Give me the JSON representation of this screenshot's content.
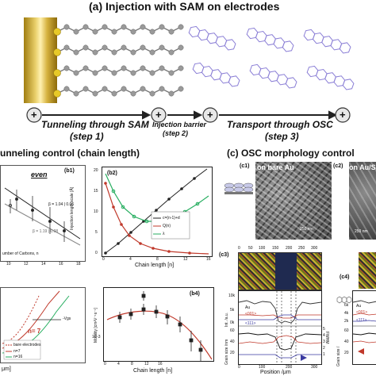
{
  "figure": {
    "title": "(a) Injection with SAM on electrodes",
    "steps": [
      {
        "label": "Tunneling through SAM",
        "sub": "(step 1)"
      },
      {
        "label": "Injection barrier",
        "sub": "(step 2)"
      },
      {
        "label": "Transport through OSC",
        "sub": "(step 3)"
      }
    ],
    "plus_symbol": "+",
    "section_b": "unneling control (chain length)",
    "section_c": "(c) OSC morphology control"
  },
  "b1": {
    "label": "(b1)",
    "tag": "even",
    "beta1": "β = 1.04 | 0.06",
    "beta2": "β = 1.19 | 0.08",
    "xlabel": "umber of Carbons, n",
    "xticks": [
      "10",
      "12",
      "14",
      "16",
      "18"
    ]
  },
  "b2": {
    "label": "(b2)",
    "ylabel": "Injection length scale [Å]",
    "xlabel": "Chain length [n]",
    "xticks": [
      "0",
      "2",
      "4",
      "6",
      "8",
      "10",
      "12",
      "14",
      "16"
    ],
    "yticks": [
      "0",
      "5",
      "10",
      "15",
      "20"
    ],
    "legend": [
      "c=(n-1)+d",
      "Q(n)",
      "λ"
    ]
  },
  "b3": {
    "label": "n= 7",
    "vgs": "-Vgs",
    "legend": [
      "bare electrodes",
      "n=7",
      "n=16"
    ],
    "xlabel": "μm]"
  },
  "b4": {
    "label": "(b4)",
    "ylabel": "Mobility [cm²V⁻¹s⁻¹]",
    "xlabel": "Chain length [n]",
    "ytick_low": "1E-3",
    "xticks": [
      "0",
      "2",
      "4",
      "6",
      "8",
      "10",
      "12",
      "14",
      "16"
    ]
  },
  "c1": {
    "label": "(c1)",
    "caption": "on bare Au",
    "scale": "250 nm"
  },
  "c2": {
    "label": "(c2)",
    "caption": "on Au/SAM",
    "scale": "250 nm"
  },
  "c3": {
    "label": "(c3)",
    "top_ticks": [
      "0",
      "50",
      "100",
      "150",
      "200",
      "250",
      "300"
    ],
    "ylabel_int": "Int. /a.u.",
    "ylabel_grain": "Grain size /nm",
    "ylabel_fwhm": "FWHM",
    "au": "Au",
    "p001": "<001>",
    "p111": "<111>",
    "yticks_int": [
      "10k",
      "5k",
      "0k"
    ],
    "yticks_grain": [
      "60",
      "40",
      "20"
    ],
    "yticks_right": [
      "5",
      "4",
      "3",
      "2",
      "1"
    ],
    "xlabel": "Position /μm",
    "bottom_ticks": [
      "0",
      "50",
      "100",
      "150",
      "200",
      "250",
      "300"
    ]
  },
  "c4": {
    "label": "(c4)",
    "au": "Au",
    "p001": "<001>",
    "p111": "<111>",
    "yticks_int": [
      "6k",
      "4k",
      "2k"
    ],
    "yticks_grain": [
      "60",
      "40",
      "20"
    ],
    "ylabel_grain": "Grain size /"
  }
}
